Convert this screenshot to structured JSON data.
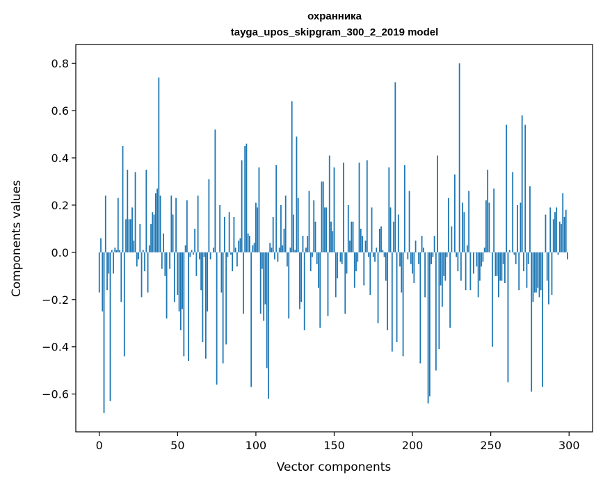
{
  "chart_data": {
    "type": "bar",
    "title": "охранника",
    "subtitle": "tayga_upos_skipgram_300_2_2019 model",
    "xlabel": "Vector components",
    "ylabel": "Components values",
    "xlim": [
      -15,
      315
    ],
    "ylim": [
      -0.76,
      0.88
    ],
    "xticks": [
      0,
      50,
      100,
      150,
      200,
      250,
      300
    ],
    "xtick_labels": [
      "0",
      "50",
      "100",
      "150",
      "200",
      "250",
      "300"
    ],
    "yticks": [
      -0.6,
      -0.4,
      -0.2,
      0.0,
      0.2,
      0.4,
      0.6,
      0.8
    ],
    "ytick_labels": [
      "−0.6",
      "−0.4",
      "−0.2",
      "0.0",
      "0.2",
      "0.4",
      "0.6",
      "0.8"
    ],
    "grid": false,
    "bar_color": "#1f77b4",
    "values": [
      -0.17,
      0.06,
      -0.25,
      -0.68,
      0.24,
      -0.16,
      -0.09,
      -0.63,
      0.01,
      -0.09,
      0.02,
      0.01,
      0.23,
      0.01,
      -0.21,
      0.45,
      -0.44,
      0.14,
      0.35,
      0.14,
      0.14,
      0.19,
      0.05,
      0.34,
      -0.06,
      -0.03,
      0.12,
      -0.19,
      0.01,
      -0.08,
      0.35,
      -0.17,
      0.03,
      0.12,
      0.17,
      0.16,
      0.25,
      0.27,
      0.74,
      0.24,
      -0.07,
      0.08,
      -0.1,
      -0.28,
      0.0,
      -0.07,
      0.24,
      0.16,
      -0.21,
      0.23,
      -0.18,
      -0.25,
      -0.33,
      -0.24,
      -0.44,
      0.03,
      0.22,
      -0.46,
      -0.02,
      0.01,
      -0.01,
      0.1,
      -0.1,
      0.24,
      -0.03,
      -0.16,
      -0.38,
      -0.02,
      -0.45,
      -0.25,
      0.31,
      -0.03,
      0.0,
      0.02,
      0.52,
      -0.56,
      0.0,
      0.2,
      -0.17,
      -0.47,
      0.15,
      -0.39,
      -0.02,
      0.17,
      -0.01,
      -0.08,
      0.15,
      0.02,
      -0.06,
      0.05,
      0.06,
      0.39,
      -0.26,
      0.45,
      0.46,
      0.08,
      0.07,
      -0.57,
      0.03,
      0.04,
      0.21,
      0.19,
      0.36,
      -0.26,
      -0.07,
      -0.29,
      -0.22,
      -0.49,
      -0.62,
      0.04,
      0.02,
      0.15,
      -0.03,
      0.37,
      -0.04,
      0.02,
      0.2,
      0.03,
      0.1,
      0.24,
      -0.06,
      -0.28,
      0.02,
      0.64,
      0.16,
      0.01,
      0.49,
      0.23,
      -0.24,
      -0.21,
      0.07,
      -0.33,
      0.02,
      0.07,
      0.26,
      -0.08,
      -0.02,
      0.22,
      0.13,
      -0.05,
      -0.15,
      -0.32,
      0.3,
      0.3,
      0.19,
      0.19,
      -0.27,
      0.41,
      0.13,
      0.09,
      0.36,
      -0.19,
      -0.11,
      0.0,
      -0.04,
      -0.05,
      0.38,
      -0.26,
      -0.09,
      0.2,
      0.05,
      0.13,
      0.13,
      -0.15,
      -0.08,
      -0.04,
      0.38,
      0.1,
      0.07,
      -0.14,
      0.05,
      0.39,
      -0.02,
      -0.18,
      0.19,
      -0.02,
      -0.04,
      0.02,
      -0.3,
      0.1,
      0.11,
      0.01,
      -0.02,
      -0.12,
      -0.33,
      0.36,
      0.19,
      -0.42,
      0.13,
      0.72,
      -0.38,
      0.16,
      -0.06,
      -0.17,
      -0.44,
      0.37,
      0.0,
      -0.03,
      0.26,
      -0.05,
      -0.09,
      -0.13,
      0.05,
      0.0,
      -0.05,
      -0.47,
      0.07,
      0.02,
      -0.19,
      0.0,
      -0.64,
      -0.61,
      -0.05,
      -0.02,
      0.07,
      -0.5,
      0.41,
      -0.41,
      -0.14,
      -0.23,
      -0.1,
      -0.12,
      -0.02,
      0.23,
      -0.32,
      0.11,
      0.0,
      0.33,
      -0.02,
      -0.08,
      0.8,
      -0.12,
      0.21,
      0.17,
      -0.16,
      0.03,
      0.26,
      -0.16,
      0.0,
      -0.09,
      0.0,
      -0.06,
      -0.19,
      -0.12,
      -0.06,
      -0.04,
      0.02,
      0.22,
      0.35,
      0.21,
      0.0,
      -0.4,
      0.27,
      -0.1,
      -0.1,
      -0.19,
      -0.12,
      -0.12,
      -0.05,
      -0.13,
      0.54,
      -0.55,
      0.01,
      0.0,
      0.34,
      -0.01,
      -0.05,
      0.2,
      -0.16,
      0.21,
      0.58,
      -0.08,
      0.54,
      -0.15,
      -0.05,
      0.28,
      -0.59,
      -0.21,
      -0.17,
      -0.17,
      -0.15,
      -0.19,
      -0.16,
      -0.57,
      0.0,
      0.16,
      -0.12,
      -0.22,
      0.19,
      -0.18,
      0.14,
      0.17,
      0.19,
      -0.01,
      0.13,
      0.12,
      0.25,
      0.15,
      0.18,
      -0.03
    ]
  }
}
